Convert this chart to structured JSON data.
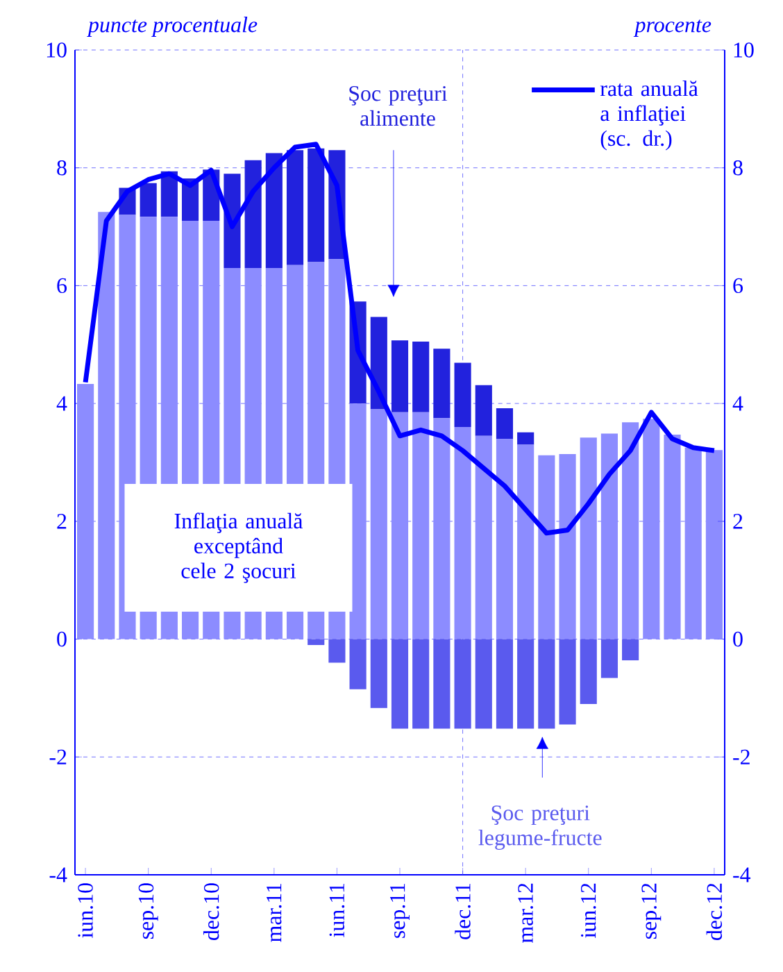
{
  "chart_data": {
    "type": "bar",
    "stacked": true,
    "ylabel": "puncte procentuale",
    "y2label": "procente",
    "categories": [
      "iun.10",
      null,
      null,
      "sep.10",
      null,
      null,
      "dec.10",
      null,
      null,
      "mar.11",
      null,
      null,
      "iun.11",
      null,
      null,
      "sep.11",
      null,
      null,
      "dec.11",
      null,
      null,
      "mar.12",
      null,
      null,
      "iun.12",
      null,
      null,
      "sep.12",
      null,
      null,
      "dec.12"
    ],
    "series": [
      {
        "name": "Inflaţia anuală exceptând cele 2 şocuri",
        "color": "#8c8cff",
        "values": [
          4.33,
          7.25,
          7.2,
          7.17,
          7.17,
          7.1,
          7.1,
          6.3,
          6.3,
          6.3,
          6.35,
          6.4,
          6.45,
          4.0,
          3.9,
          3.85,
          3.85,
          3.75,
          3.6,
          3.45,
          3.4,
          3.3,
          3.12,
          3.14,
          3.42,
          3.49,
          3.68,
          3.74,
          3.47,
          3.25,
          3.21
        ]
      },
      {
        "name": "Şoc preţuri alimente",
        "color": "#2222dd",
        "values": [
          0,
          0,
          0.46,
          0.57,
          0.77,
          0.72,
          0.87,
          1.6,
          1.83,
          1.95,
          1.95,
          1.93,
          1.85,
          1.73,
          1.57,
          1.22,
          1.2,
          1.18,
          1.09,
          0.86,
          0.52,
          0.21,
          0,
          0,
          0,
          0,
          0,
          0,
          0,
          0,
          0
        ]
      },
      {
        "name": "Şoc preţuri legume-fructe",
        "color": "#5a5aee",
        "values": [
          0,
          0,
          0,
          0,
          0,
          0,
          0,
          0,
          0,
          0,
          0,
          -0.1,
          -0.4,
          -0.85,
          -1.17,
          -1.52,
          -1.52,
          -1.52,
          -1.52,
          -1.52,
          -1.52,
          -1.52,
          -1.52,
          -1.45,
          -1.1,
          -0.66,
          -0.36,
          0,
          0,
          0,
          0
        ]
      },
      {
        "name": "rata anuală a inflaţiei (sc. dr.)",
        "type": "line",
        "axis": "y2",
        "color": "#0000ff",
        "line_style": "solid",
        "marker": "none",
        "values": [
          4.36,
          7.1,
          7.6,
          7.8,
          7.9,
          7.7,
          7.96,
          7.0,
          7.6,
          8.0,
          8.35,
          8.4,
          7.7,
          4.9,
          4.2,
          3.45,
          3.55,
          3.45,
          3.2,
          2.9,
          2.6,
          2.2,
          1.8,
          1.85,
          2.3,
          2.8,
          3.2,
          3.85,
          3.4,
          3.25,
          3.2
        ]
      }
    ],
    "ylim": [
      -4,
      10
    ],
    "yticks": [
      -4,
      -2,
      0,
      2,
      4,
      6,
      8,
      10
    ],
    "y2lim": [
      -4,
      10
    ],
    "y2ticks": [
      -4,
      -2,
      0,
      2,
      4,
      6,
      8,
      10
    ],
    "ref_lines": [
      {
        "axis": "x",
        "value": "dec.11",
        "line_style": "dashed"
      }
    ],
    "grid": "y",
    "legend": "top right"
  }
}
